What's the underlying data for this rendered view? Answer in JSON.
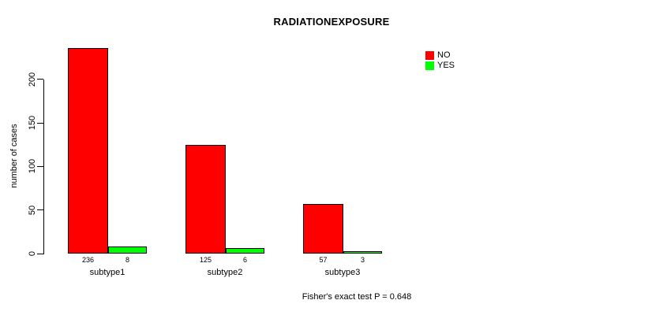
{
  "chart_data": {
    "type": "bar",
    "title": "RADIATIONEXPOSURE",
    "ylabel": "number of cases",
    "xlabel": "",
    "categories": [
      "subtype1",
      "subtype2",
      "subtype3"
    ],
    "series": [
      {
        "name": "NO",
        "color": "#FF0000",
        "values": [
          236,
          125,
          57
        ]
      },
      {
        "name": "YES",
        "color": "#00FF00",
        "values": [
          8,
          6,
          3
        ]
      }
    ],
    "bar_value_labels": [
      [
        236,
        8
      ],
      [
        125,
        6
      ],
      [
        57,
        3
      ]
    ],
    "yticks": [
      0,
      50,
      100,
      150,
      200
    ],
    "ylim": [
      0,
      240
    ],
    "grid": false,
    "legend_position": "top-right",
    "bar_border_color": "#000000",
    "annotation": "Fisher's exact test P = 0.648"
  }
}
